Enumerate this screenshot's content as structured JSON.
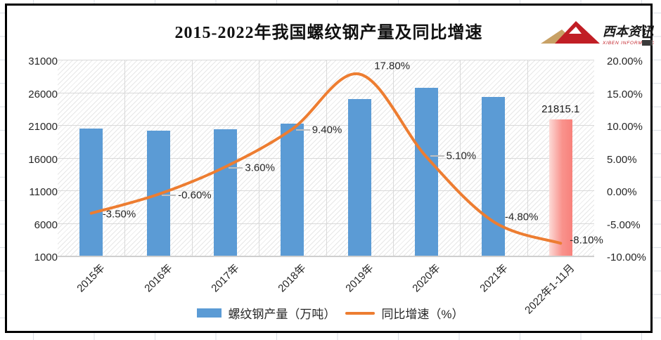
{
  "title": "2015-2022年我国螺纹钢产量及同比增速",
  "logo": {
    "name_cn": "西本资讯",
    "name_en": "XIBEN INFORMATION"
  },
  "colors": {
    "bar": "#5B9BD5",
    "line": "#ED7D31",
    "highlight_bar_start": "#FCDAD6",
    "highlight_bar_mid": "#F9938D",
    "highlight_bar_end": "#F8817B",
    "gridline": "#D9D9D9",
    "leader": "#BFBFBF",
    "label": "#262626",
    "logo_red": "#C11E25",
    "logo_gold": "#C8A165"
  },
  "chart_data": {
    "type": "combo-bar-line",
    "title": "2015-2022年我国螺纹钢产量及同比增速",
    "categories": [
      "2015年",
      "2016年",
      "2017年",
      "2018年",
      "2019年",
      "2020年",
      "2021年",
      "2022年1-11月"
    ],
    "series": [
      {
        "name": "螺纹钢产量（万吨）",
        "type": "bar",
        "axis": "left",
        "values": [
          20500,
          20150,
          20400,
          21200,
          25000,
          26700,
          25300,
          21815.1
        ],
        "data_labels": [
          null,
          null,
          null,
          null,
          null,
          null,
          null,
          "21815.1"
        ],
        "highlighted_index": 7
      },
      {
        "name": "同比增速（%）",
        "type": "line",
        "axis": "right",
        "values": [
          -3.5,
          -0.6,
          3.6,
          9.4,
          17.8,
          5.1,
          -4.8,
          -8.1
        ],
        "data_labels": [
          "-3.50%",
          "-0.60%",
          "3.60%",
          "9.40%",
          "17.80%",
          "5.10%",
          "-4.80%",
          "-8.10%"
        ]
      }
    ],
    "left_axis": {
      "min": 1000,
      "max": 31000,
      "ticks": [
        "31000",
        "26000",
        "21000",
        "16000",
        "11000",
        "6000",
        "1000"
      ]
    },
    "right_axis": {
      "min": -10,
      "max": 20,
      "ticks": [
        "20.00%",
        "15.00%",
        "10.00%",
        "5.00%",
        "0.00%",
        "-5.00%",
        "-10.00%"
      ]
    },
    "legend": [
      "螺纹钢产量（万吨）",
      "同比增速（%）"
    ],
    "legend_position": "bottom",
    "grid": true
  }
}
